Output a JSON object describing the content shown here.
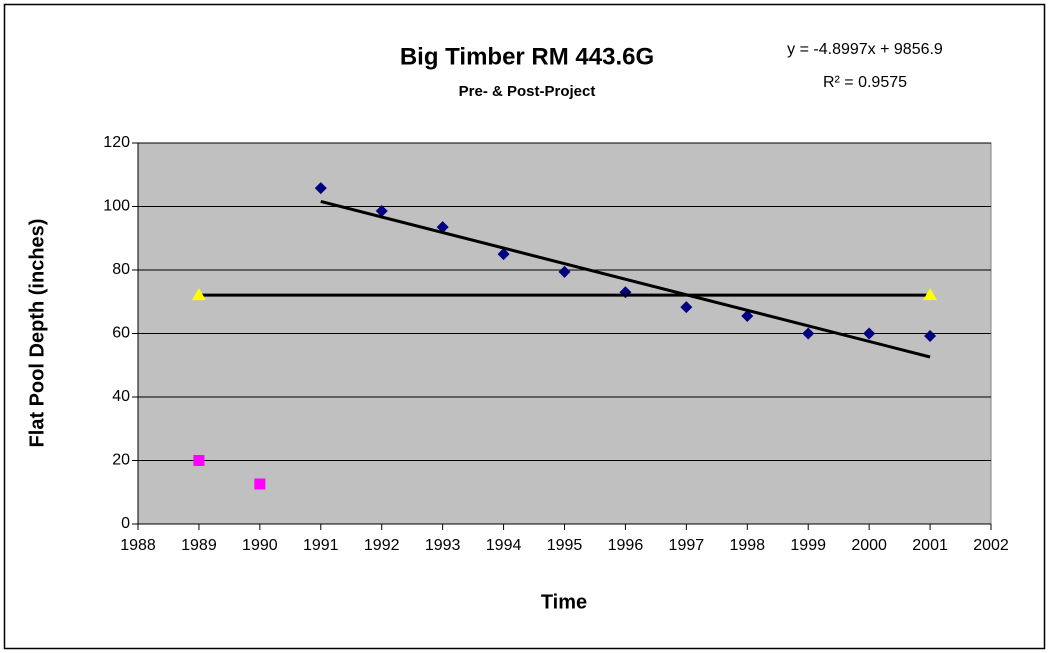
{
  "chart_data": {
    "type": "scatter",
    "title": "Big Timber RM 443.6G",
    "subtitle": "Pre- & Post-Project",
    "annotations": [
      "y = -4.8997x + 9856.9",
      "R² = 0.9575"
    ],
    "x_label": "Time",
    "y_label": "Flat Pool Depth (inches)",
    "xlim": [
      1988,
      2002
    ],
    "xticks": [
      1988,
      1989,
      1990,
      1991,
      1992,
      1993,
      1994,
      1995,
      1996,
      1997,
      1998,
      1999,
      2000,
      2001,
      2002
    ],
    "ylim": [
      0,
      120
    ],
    "yticks": [
      0,
      20,
      40,
      60,
      80,
      100,
      120
    ],
    "grid": true,
    "series": [
      {
        "marker": "diamond",
        "color": "#000080",
        "line": false,
        "x": [
          1991,
          1992,
          1993,
          1994,
          1995,
          1996,
          1997,
          1998,
          1999,
          2000,
          2001
        ],
        "values": [
          105.8,
          98.6,
          93.5,
          85,
          79.4,
          73,
          68.3,
          65.5,
          60,
          60,
          59.2
        ]
      },
      {
        "marker": "square",
        "color": "#ff00ff",
        "line": false,
        "x": [
          1989,
          1990
        ],
        "values": [
          20,
          12.6
        ]
      },
      {
        "marker": "triangle",
        "color": "#ffff00",
        "line": true,
        "line_color": "#000000",
        "x": [
          1989,
          2001
        ],
        "values": [
          72.1,
          72.1
        ]
      },
      {
        "marker": "none",
        "color": "#000000",
        "line": true,
        "line_color": "#000000",
        "x": [
          1991,
          2001
        ],
        "values": [
          101.6,
          52.6
        ]
      }
    ]
  }
}
